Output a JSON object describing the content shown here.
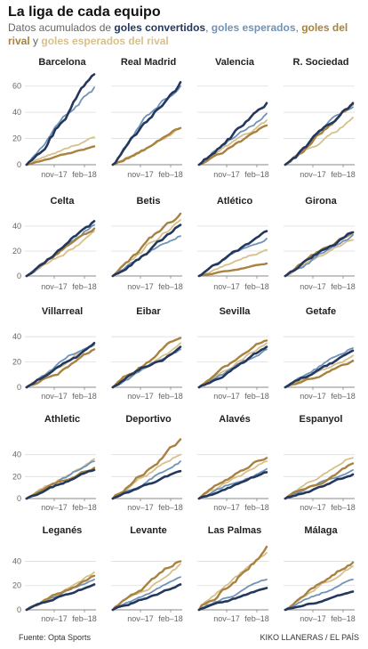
{
  "header": {
    "title": "La liga de cada equipo",
    "subtitle_prefix": "Datos acumulados de ",
    "series_labels": {
      "goles_convertidos": "goles convertidos",
      "goles_esperados": "goles esperados",
      "goles_del_rival": "goles del rival",
      "goles_esperados_del_rival": "goles esperados del rival"
    },
    "sep1": ", ",
    "sep2": ",",
    "sep3": " y "
  },
  "footer": {
    "source": "Fuente: Opta Sports",
    "credit": "KIKO LLANERAS / EL PAÍS"
  },
  "colors": {
    "goles_convertidos": "#24385e",
    "goles_esperados": "#6f93b8",
    "goles_del_rival": "#a8823e",
    "goles_esperados_del_rival": "#d7c08b",
    "grid": "#dddddd",
    "axis": "#888888"
  },
  "chart_data": {
    "type": "line",
    "series_names": [
      "goles convertidos",
      "goles esperados",
      "goles del rival",
      "goles esperados del rival"
    ],
    "x_tick_labels": [
      "nov–17",
      "feb–18"
    ],
    "rows": [
      {
        "y_ticks": [
          0,
          20,
          40,
          60
        ],
        "ylim": [
          0,
          70
        ]
      },
      {
        "y_ticks": [
          0,
          20,
          40
        ],
        "ylim": [
          0,
          50
        ]
      },
      {
        "y_ticks": [
          0,
          20,
          40
        ],
        "ylim": [
          0,
          50
        ]
      },
      {
        "y_ticks": [
          0,
          20,
          40
        ],
        "ylim": [
          0,
          60
        ]
      },
      {
        "y_ticks": [
          0,
          20,
          40
        ],
        "ylim": [
          0,
          55
        ]
      }
    ],
    "teams": [
      {
        "name": "Barcelona",
        "row": 0,
        "final": [
          69,
          59,
          14,
          21
        ]
      },
      {
        "name": "Real Madrid",
        "row": 0,
        "final": [
          63,
          60,
          28,
          28
        ]
      },
      {
        "name": "Valencia",
        "row": 0,
        "final": [
          47,
          39,
          30,
          34
        ]
      },
      {
        "name": "R. Sociedad",
        "row": 0,
        "final": [
          47,
          44,
          46,
          36
        ]
      },
      {
        "name": "Celta",
        "row": 1,
        "final": [
          44,
          41,
          38,
          36
        ]
      },
      {
        "name": "Betis",
        "row": 1,
        "final": [
          41,
          32,
          50,
          45
        ]
      },
      {
        "name": "Atlético",
        "row": 1,
        "final": [
          36,
          30,
          10,
          21
        ]
      },
      {
        "name": "Girona",
        "row": 1,
        "final": [
          35,
          33,
          35,
          29
        ]
      },
      {
        "name": "Villarreal",
        "row": 2,
        "final": [
          35,
          34,
          30,
          33
        ]
      },
      {
        "name": "Eibar",
        "row": 2,
        "final": [
          32,
          30,
          39,
          35
        ]
      },
      {
        "name": "Sevilla",
        "row": 2,
        "final": [
          32,
          30,
          37,
          35
        ]
      },
      {
        "name": "Getafe",
        "row": 2,
        "final": [
          29,
          31,
          21,
          25
        ]
      },
      {
        "name": "Athletic",
        "row": 3,
        "final": [
          26,
          34,
          28,
          36
        ]
      },
      {
        "name": "Deportivo",
        "row": 3,
        "final": [
          25,
          34,
          54,
          40
        ]
      },
      {
        "name": "Alavés",
        "row": 3,
        "final": [
          24,
          27,
          37,
          34
        ]
      },
      {
        "name": "Espanyol",
        "row": 3,
        "final": [
          22,
          26,
          32,
          37
        ]
      },
      {
        "name": "Leganés",
        "row": 4,
        "final": [
          21,
          25,
          28,
          31
        ]
      },
      {
        "name": "Levante",
        "row": 4,
        "final": [
          21,
          27,
          40,
          38
        ]
      },
      {
        "name": "Las Palmas",
        "row": 4,
        "final": [
          18,
          25,
          52,
          47
        ]
      },
      {
        "name": "Málaga",
        "row": 4,
        "final": [
          15,
          25,
          39,
          36
        ]
      }
    ]
  }
}
